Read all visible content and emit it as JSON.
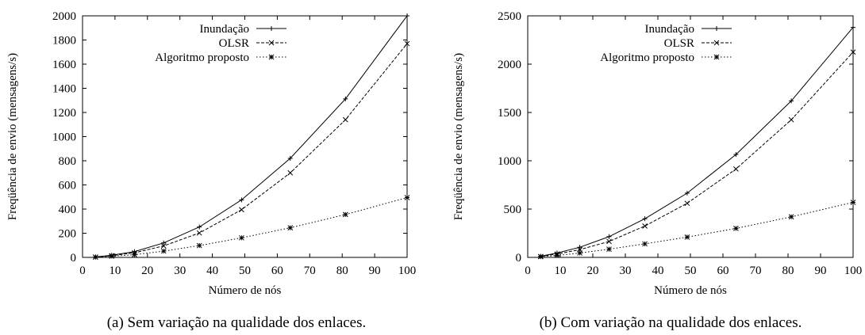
{
  "chart_data": [
    {
      "type": "line",
      "title": "",
      "xlabel": "Número de nós",
      "ylabel": "Freqüência de envio (mensagens/s)",
      "caption": "(a) Sem variação na qualidade dos enlaces.",
      "xlim": [
        0,
        100
      ],
      "ylim": [
        0,
        2000
      ],
      "xticks": [
        0,
        10,
        20,
        30,
        40,
        50,
        60,
        70,
        80,
        90,
        100
      ],
      "yticks": [
        0,
        200,
        400,
        600,
        800,
        1000,
        1200,
        1400,
        1600,
        1800,
        2000
      ],
      "legend_position": "top-left",
      "x": [
        4,
        9,
        16,
        25,
        36,
        49,
        64,
        81,
        100
      ],
      "series": [
        {
          "name": "Inundação",
          "style": "solid",
          "marker": "plus",
          "values": [
            4,
            18,
            48,
            120,
            252,
            476,
            820,
            1312,
            2000
          ]
        },
        {
          "name": "OLSR",
          "style": "dashed",
          "marker": "cross",
          "values": [
            3,
            14,
            38,
            95,
            202,
            395,
            700,
            1140,
            1770
          ]
        },
        {
          "name": "Algoritmo proposto",
          "style": "dotted",
          "marker": "star",
          "values": [
            2,
            10,
            22,
            52,
            98,
            162,
            245,
            355,
            495
          ]
        }
      ]
    },
    {
      "type": "line",
      "title": "",
      "xlabel": "Número de nós",
      "ylabel": "Freqüência de envio (mensagens/s)",
      "caption": "(b) Com variação na qualidade dos enlaces.",
      "xlim": [
        0,
        100
      ],
      "ylim": [
        0,
        2500
      ],
      "xticks": [
        0,
        10,
        20,
        30,
        40,
        50,
        60,
        70,
        80,
        90,
        100
      ],
      "yticks": [
        0,
        500,
        1000,
        1500,
        2000,
        2500
      ],
      "legend_position": "top-left",
      "x": [
        4,
        9,
        16,
        25,
        36,
        49,
        64,
        81,
        100
      ],
      "series": [
        {
          "name": "Inundação",
          "style": "solid",
          "marker": "plus",
          "values": [
            12,
            45,
            105,
            215,
            400,
            665,
            1065,
            1620,
            2380
          ]
        },
        {
          "name": "OLSR",
          "style": "dashed",
          "marker": "cross",
          "values": [
            9,
            35,
            80,
            165,
            325,
            560,
            915,
            1425,
            2125
          ]
        },
        {
          "name": "Algoritmo proposto",
          "style": "dotted",
          "marker": "star",
          "values": [
            7,
            20,
            45,
            85,
            140,
            210,
            300,
            420,
            570
          ]
        }
      ]
    }
  ]
}
